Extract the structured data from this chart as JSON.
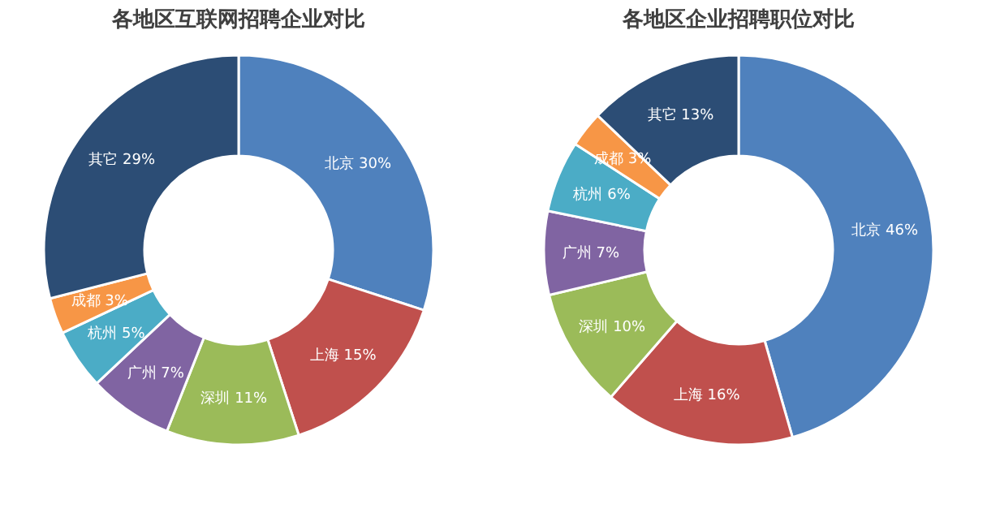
{
  "chart_data": [
    {
      "type": "donut",
      "title": "各地区互联网招聘企业对比",
      "categories": [
        "北京",
        "上海",
        "深圳",
        "广州",
        "杭州",
        "成都",
        "其它"
      ],
      "values": [
        30,
        15,
        11,
        7,
        5,
        3,
        29
      ],
      "value_labels": [
        "30%",
        "15%",
        "11%",
        "7%",
        "5%",
        "3%",
        "29%"
      ],
      "colors": [
        "#4f81bd",
        "#c0504d",
        "#9bbb59",
        "#8064a2",
        "#4bacc6",
        "#f79646",
        "#2c4d75"
      ],
      "legend": false
    },
    {
      "type": "donut",
      "title": "各地区企业招聘职位对比",
      "categories": [
        "北京",
        "上海",
        "深圳",
        "广州",
        "杭州",
        "成都",
        "其它"
      ],
      "values": [
        46,
        16,
        10,
        7,
        6,
        3,
        13
      ],
      "value_labels": [
        "46%",
        "16%",
        "10%",
        "7%",
        "6%",
        "3%",
        "13%"
      ],
      "colors": [
        "#4f81bd",
        "#c0504d",
        "#9bbb59",
        "#8064a2",
        "#4bacc6",
        "#f79646",
        "#2c4d75"
      ],
      "legend": false
    }
  ]
}
